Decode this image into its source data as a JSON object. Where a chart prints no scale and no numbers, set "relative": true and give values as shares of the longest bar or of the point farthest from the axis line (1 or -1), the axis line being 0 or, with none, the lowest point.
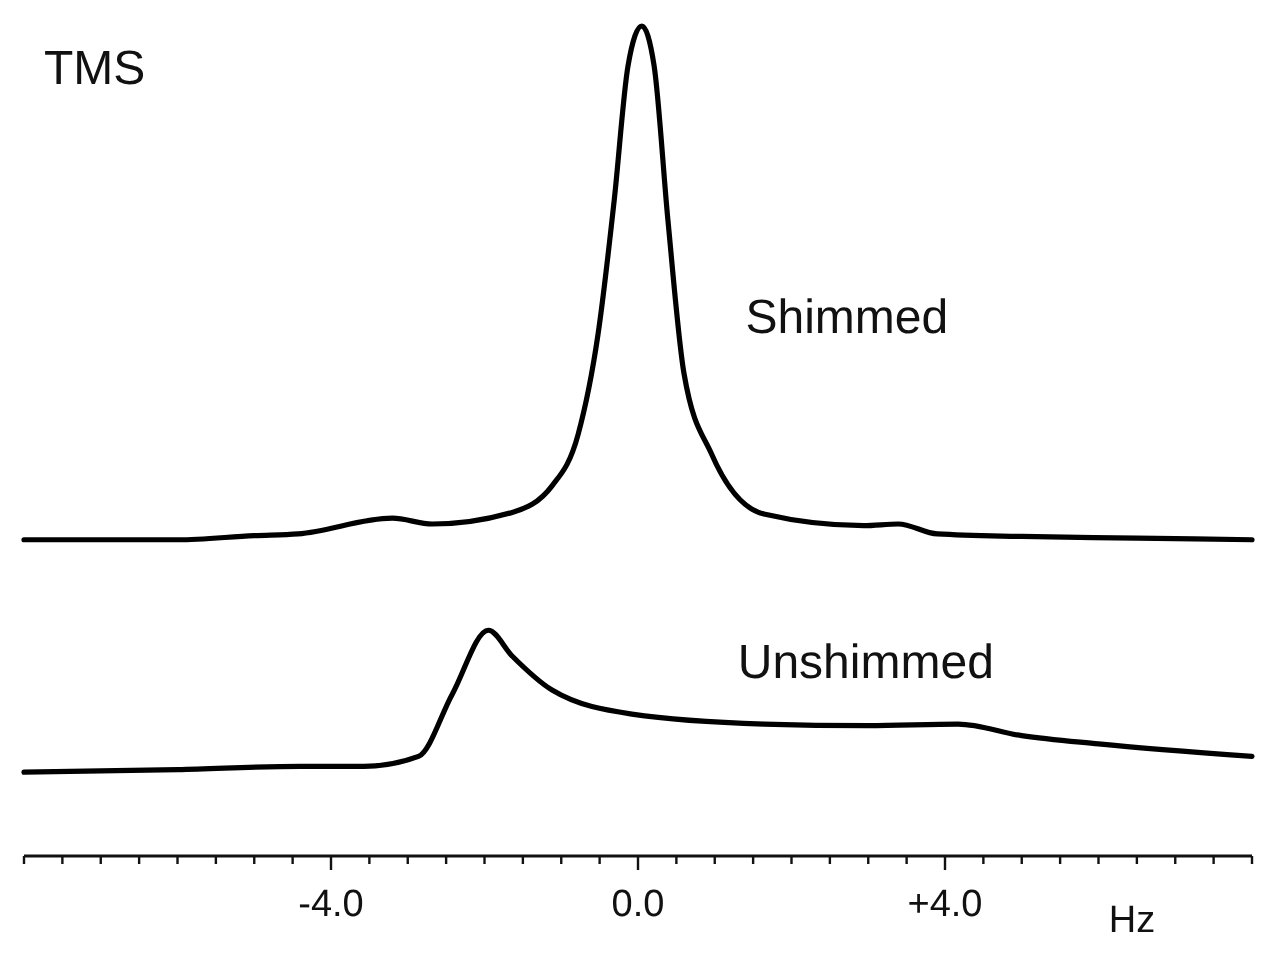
{
  "chart_data": {
    "type": "line",
    "title": "TMS",
    "xlabel": "Hz",
    "relative": true,
    "marker": "none",
    "xlim": [
      -8,
      8
    ],
    "xticks": [
      {
        "value": -8,
        "label": null
      },
      {
        "value": -7.5,
        "label": null
      },
      {
        "value": -7,
        "label": null
      },
      {
        "value": -6.5,
        "label": null
      },
      {
        "value": -6,
        "label": null
      },
      {
        "value": -5.5,
        "label": null
      },
      {
        "value": -5,
        "label": null
      },
      {
        "value": -4.5,
        "label": null
      },
      {
        "value": -4,
        "label": "-4.0"
      },
      {
        "value": -3.5,
        "label": null
      },
      {
        "value": -3,
        "label": null
      },
      {
        "value": -2.5,
        "label": null
      },
      {
        "value": -2,
        "label": null
      },
      {
        "value": -1.5,
        "label": null
      },
      {
        "value": -1,
        "label": null
      },
      {
        "value": -0.5,
        "label": null
      },
      {
        "value": 0,
        "label": "0.0"
      },
      {
        "value": 0.5,
        "label": null
      },
      {
        "value": 1,
        "label": null
      },
      {
        "value": 1.5,
        "label": null
      },
      {
        "value": 2,
        "label": null
      },
      {
        "value": 2.5,
        "label": null
      },
      {
        "value": 3,
        "label": null
      },
      {
        "value": 3.5,
        "label": null
      },
      {
        "value": 4,
        "label": "+4.0"
      },
      {
        "value": 4.5,
        "label": null
      },
      {
        "value": 5,
        "label": null
      },
      {
        "value": 5.5,
        "label": null
      },
      {
        "value": 6,
        "label": null
      },
      {
        "value": 6.5,
        "label": null
      },
      {
        "value": 7,
        "label": null
      },
      {
        "value": 7.5,
        "label": null
      },
      {
        "value": 8,
        "label": null
      }
    ],
    "series": [
      {
        "name": "Shimmed",
        "color": "#000000",
        "x": [
          -8,
          -6,
          -5,
          -4.43,
          -3.2,
          -2.68,
          -1.64,
          -1.12,
          -0.78,
          -0.52,
          -0.31,
          -0.13,
          0.05,
          0.21,
          0.39,
          0.6,
          0.96,
          1.64,
          2.94,
          3.39,
          3.9,
          5,
          6.5,
          8
        ],
        "values": [
          0.381,
          0.381,
          0.386,
          0.388,
          0.407,
          0.4,
          0.414,
          0.446,
          0.508,
          0.629,
          0.79,
          0.952,
          1,
          0.952,
          0.766,
          0.581,
          0.484,
          0.412,
          0.398,
          0.4,
          0.388,
          0.385,
          0.383,
          0.381
        ]
      },
      {
        "name": "Unshimmed",
        "color": "#000000",
        "x": [
          -8,
          -6,
          -4.4,
          -3.57,
          -2.86,
          -2.42,
          -1.95,
          -1.64,
          -1.12,
          -0.08,
          1.64,
          3,
          4.17,
          5,
          6,
          8
        ],
        "values": [
          0.101,
          0.104,
          0.108,
          0.108,
          0.12,
          0.195,
          0.272,
          0.241,
          0.2,
          0.171,
          0.159,
          0.157,
          0.159,
          0.145,
          0.135,
          0.12
        ]
      }
    ]
  }
}
